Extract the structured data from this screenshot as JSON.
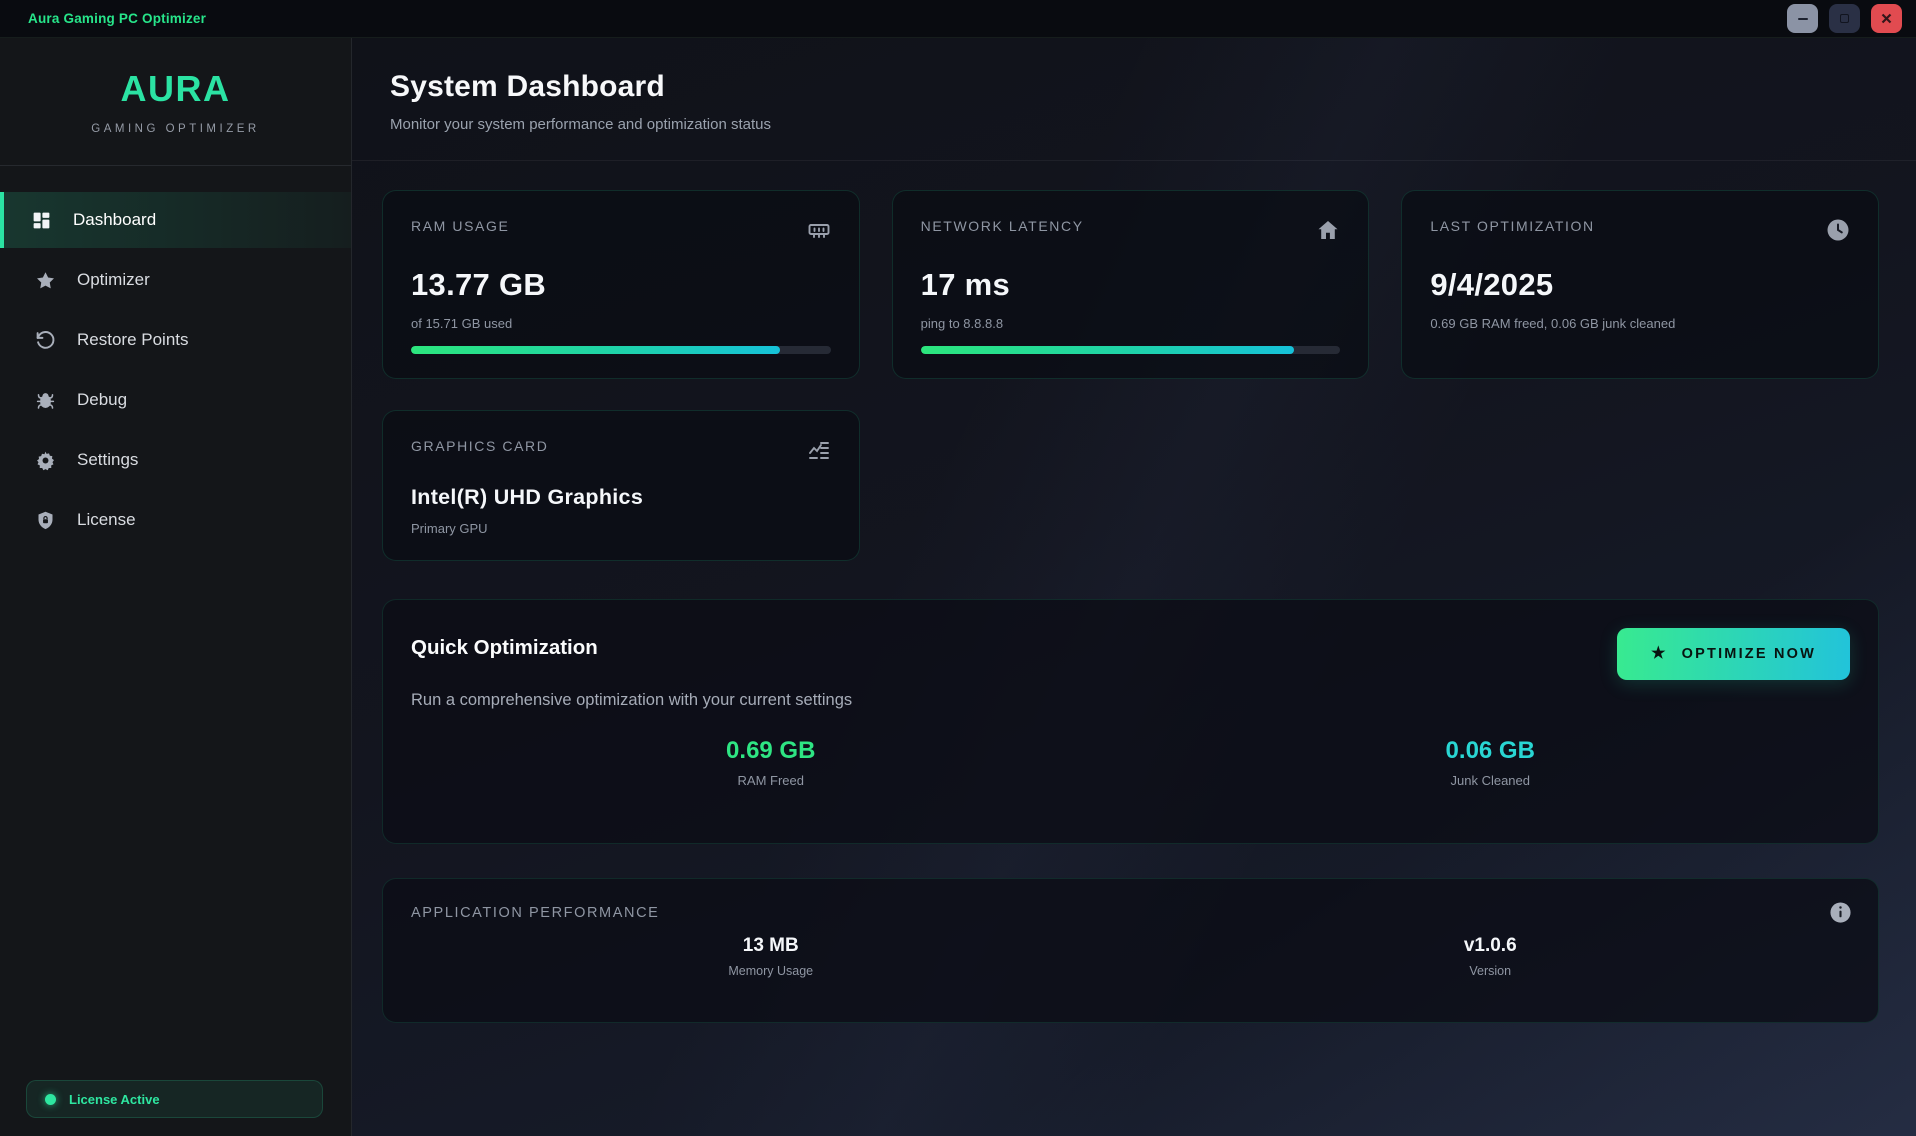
{
  "window": {
    "title": "Aura Gaming PC Optimizer"
  },
  "sidebar": {
    "logo": "AURA",
    "tagline": "GAMING OPTIMIZER",
    "items": [
      {
        "label": "Dashboard",
        "icon": "dashboard-grid-icon",
        "active": true
      },
      {
        "label": "Optimizer",
        "icon": "star-icon",
        "active": false
      },
      {
        "label": "Restore Points",
        "icon": "restore-icon",
        "active": false
      },
      {
        "label": "Debug",
        "icon": "bug-icon",
        "active": false
      },
      {
        "label": "Settings",
        "icon": "gear-icon",
        "active": false
      },
      {
        "label": "License",
        "icon": "shield-lock-icon",
        "active": false
      }
    ],
    "license_badge": "License Active"
  },
  "header": {
    "title": "System Dashboard",
    "subtitle": "Monitor your system performance and optimization status"
  },
  "cards": {
    "ram": {
      "title": "RAM USAGE",
      "icon": "memory-icon",
      "value": "13.77 GB",
      "subtitle": "of 15.71 GB used",
      "progress_pct": 88
    },
    "network": {
      "title": "NETWORK LATENCY",
      "icon": "home-icon",
      "value": "17 ms",
      "subtitle": "ping to 8.8.8.8",
      "progress_pct": 89
    },
    "last_opt": {
      "title": "LAST OPTIMIZATION",
      "icon": "clock-icon",
      "value": "9/4/2025",
      "subtitle": "0.69 GB RAM freed, 0.06 GB junk cleaned"
    },
    "gpu": {
      "title": "GRAPHICS CARD",
      "icon": "monitor-chart-icon",
      "value": "Intel(R) UHD Graphics",
      "subtitle": "Primary GPU"
    }
  },
  "quick_optimization": {
    "title": "Quick Optimization",
    "description": "Run a comprehensive optimization with your current settings",
    "button_label": "OPTIMIZE NOW",
    "button_icon": "star-icon",
    "stats": [
      {
        "value": "0.69 GB",
        "label": "RAM Freed",
        "color": "#2ee583"
      },
      {
        "value": "0.06 GB",
        "label": "Junk Cleaned",
        "color": "#29d6d3"
      }
    ]
  },
  "app_performance": {
    "title": "APPLICATION PERFORMANCE",
    "icon": "info-icon",
    "stats": [
      {
        "value": "13 MB",
        "label": "Memory Usage"
      },
      {
        "value": "v1.0.6",
        "label": "Version"
      }
    ]
  },
  "colors": {
    "accent_green": "#2ee6a0",
    "accent_cyan": "#29d6d3",
    "progress_gradient_start": "#2ce57d",
    "progress_gradient_end": "#16c2d9",
    "close_button_red": "#e14b50",
    "active_nav_green": "#2be3a3"
  }
}
